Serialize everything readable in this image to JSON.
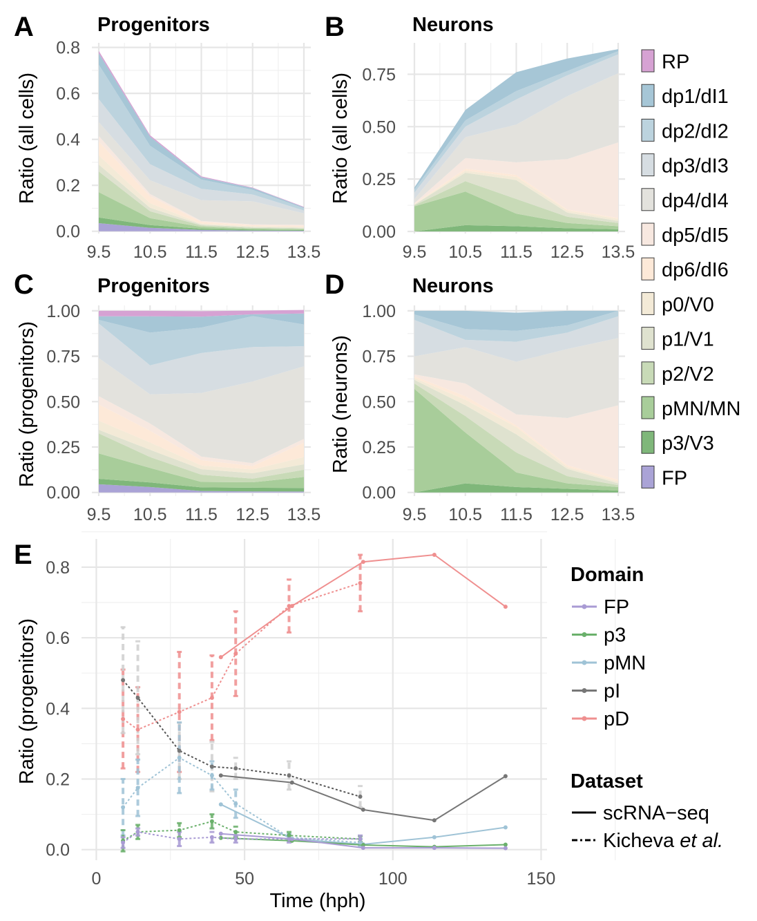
{
  "colors": {
    "RP": "#d6a2d3",
    "dp1/dI1": "#a6c6d6",
    "dp2/dI2": "#bcd3de",
    "dp3/dI3": "#d6dde2",
    "dp4/dI4": "#e3e2dd",
    "dp5/dI5": "#f7e8e0",
    "dp6/dI6": "#fde9d8",
    "p0/V0": "#f3ead7",
    "p1/V1": "#dfe2cf",
    "p2/V2": "#c8dab7",
    "pMN/MN": "#a8cd9a",
    "p3/V3": "#7fb77a",
    "FP": "#aaa3d6",
    "line_FP": "#a99bd4",
    "line_p3": "#6ab06b",
    "line_pMN": "#9fc3d6",
    "line_pI": "#767676",
    "line_pD": "#ef8f8f",
    "error_pI": "#cfcfcf"
  },
  "legend": {
    "domains": [
      "RP",
      "dp1/dI1",
      "dp2/dI2",
      "dp3/dI3",
      "dp4/dI4",
      "dp5/dI5",
      "dp6/dI6",
      "p0/V0",
      "p1/V1",
      "p2/V2",
      "pMN/MN",
      "p3/V3",
      "FP"
    ],
    "e_title": "Domain",
    "e_items": [
      "FP",
      "p3",
      "pMN",
      "pI",
      "pD"
    ],
    "dataset_title": "Dataset",
    "dataset_items": [
      {
        "label": "scRNA−seq",
        "style": "solid"
      },
      {
        "label_prefix": "Kicheva ",
        "label_italic": "et al.",
        "style": "dashed"
      }
    ]
  },
  "chart_data": [
    {
      "id": "A",
      "type": "area",
      "title": "Progenitors",
      "xlabel": "",
      "ylabel": "Ratio (all cells)",
      "x": [
        9.5,
        10.5,
        11.5,
        12.5,
        13.5
      ],
      "xticks": [
        "9.5",
        "10.5",
        "11.5",
        "12.5",
        "13.5"
      ],
      "ylim": [
        -0.01,
        0.82
      ],
      "yticks": [
        0.0,
        0.2,
        0.4,
        0.6,
        0.8
      ],
      "ytick_labels": [
        "0.0",
        "0.2",
        "0.4",
        "0.6",
        "0.8"
      ],
      "stacked": true,
      "series": [
        {
          "domain": "FP",
          "values": [
            0.035,
            0.015,
            0.006,
            0.003,
            0.002
          ]
        },
        {
          "domain": "p3/V3",
          "values": [
            0.025,
            0.012,
            0.005,
            0.004,
            0.003
          ]
        },
        {
          "domain": "pMN/MN",
          "values": [
            0.11,
            0.03,
            0.008,
            0.004,
            0.004
          ]
        },
        {
          "domain": "p2/V2",
          "values": [
            0.09,
            0.03,
            0.006,
            0.004,
            0.003
          ]
        },
        {
          "domain": "p1/V1",
          "values": [
            0.03,
            0.015,
            0.004,
            0.003,
            0.003
          ]
        },
        {
          "domain": "p0/V0",
          "values": [
            0.04,
            0.02,
            0.004,
            0.004,
            0.004
          ]
        },
        {
          "domain": "dp6/dI6",
          "values": [
            0.06,
            0.03,
            0.008,
            0.004,
            0.005
          ]
        },
        {
          "domain": "dp5/dI5",
          "values": [
            0.025,
            0.01,
            0.004,
            0.004,
            0.004
          ]
        },
        {
          "domain": "dp4/dI4",
          "values": [
            0.06,
            0.06,
            0.09,
            0.1,
            0.05
          ]
        },
        {
          "domain": "dp3/dI3",
          "values": [
            0.1,
            0.07,
            0.05,
            0.03,
            0.012
          ]
        },
        {
          "domain": "dp2/dI2",
          "values": [
            0.15,
            0.08,
            0.04,
            0.02,
            0.01
          ]
        },
        {
          "domain": "dp1/dI1",
          "values": [
            0.05,
            0.04,
            0.01,
            0.008,
            0.004
          ]
        },
        {
          "domain": "RP",
          "values": [
            0.01,
            0.006,
            0.004,
            0.002,
            0.002
          ]
        }
      ]
    },
    {
      "id": "B",
      "type": "area",
      "title": "Neurons",
      "xlabel": "",
      "ylabel": "Ratio (all cells)",
      "x": [
        9.5,
        10.5,
        11.5,
        12.5,
        13.5
      ],
      "xticks": [
        "9.5",
        "10.5",
        "11.5",
        "12.5",
        "13.5"
      ],
      "ylim": [
        -0.01,
        0.9
      ],
      "yticks": [
        0.0,
        0.25,
        0.5,
        0.75
      ],
      "ytick_labels": [
        "0.00",
        "0.25",
        "0.50",
        "0.75"
      ],
      "stacked": true,
      "series": [
        {
          "domain": "FP",
          "values": [
            0,
            0,
            0,
            0,
            0
          ]
        },
        {
          "domain": "p3/V3",
          "values": [
            0.0,
            0.03,
            0.025,
            0.015,
            0.01
          ]
        },
        {
          "domain": "pMN/MN",
          "values": [
            0.12,
            0.16,
            0.06,
            0.025,
            0.015
          ]
        },
        {
          "domain": "p2/V2",
          "values": [
            0.005,
            0.05,
            0.07,
            0.03,
            0.015
          ]
        },
        {
          "domain": "p1/V1",
          "values": [
            0.003,
            0.04,
            0.09,
            0.02,
            0.01
          ]
        },
        {
          "domain": "p0/V0",
          "values": [
            0.002,
            0.01,
            0.015,
            0.01,
            0.01
          ]
        },
        {
          "domain": "dp6/dI6",
          "values": [
            0.002,
            0.01,
            0.01,
            0.005,
            0.005
          ]
        },
        {
          "domain": "dp5/dI5",
          "values": [
            0.003,
            0.05,
            0.06,
            0.24,
            0.36
          ]
        },
        {
          "domain": "dp4/dI4",
          "values": [
            0.02,
            0.1,
            0.18,
            0.3,
            0.33
          ]
        },
        {
          "domain": "dp3/dI3",
          "values": [
            0.03,
            0.05,
            0.12,
            0.1,
            0.09
          ]
        },
        {
          "domain": "dp2/dI2",
          "values": [
            0.015,
            0.03,
            0.04,
            0.02,
            0.015
          ]
        },
        {
          "domain": "dp1/dI1",
          "values": [
            0.01,
            0.05,
            0.09,
            0.06,
            0.01
          ]
        },
        {
          "domain": "RP",
          "values": [
            0,
            0,
            0,
            0,
            0
          ]
        }
      ]
    },
    {
      "id": "C",
      "type": "area",
      "title": "Progenitors",
      "xlabel": "",
      "ylabel": "Ratio (progenitors)",
      "x": [
        9.5,
        10.5,
        11.5,
        12.5,
        13.5
      ],
      "xticks": [
        "9.5",
        "10.5",
        "11.5",
        "12.5",
        "13.5"
      ],
      "ylim": [
        -0.02,
        1.03
      ],
      "yticks": [
        0.0,
        0.25,
        0.5,
        0.75,
        1.0
      ],
      "ytick_labels": [
        "0.00",
        "0.25",
        "0.50",
        "0.75",
        "1.00"
      ],
      "stacked": true,
      "series": [
        {
          "domain": "FP",
          "values": [
            0.045,
            0.03,
            0.008,
            0.006,
            0.005
          ]
        },
        {
          "domain": "p3/V3",
          "values": [
            0.03,
            0.025,
            0.02,
            0.02,
            0.02
          ]
        },
        {
          "domain": "pMN/MN",
          "values": [
            0.14,
            0.08,
            0.03,
            0.03,
            0.06
          ]
        },
        {
          "domain": "p2/V2",
          "values": [
            0.11,
            0.06,
            0.04,
            0.02,
            0.04
          ]
        },
        {
          "domain": "p1/V1",
          "values": [
            0.02,
            0.04,
            0.03,
            0.03,
            0.03
          ]
        },
        {
          "domain": "p0/V0",
          "values": [
            0.05,
            0.04,
            0.02,
            0.02,
            0.04
          ]
        },
        {
          "domain": "dp6/dI6",
          "values": [
            0.09,
            0.065,
            0.03,
            0.02,
            0.08
          ]
        },
        {
          "domain": "dp5/dI5",
          "values": [
            0.045,
            0.04,
            0.02,
            0.015,
            0.02
          ]
        },
        {
          "domain": "dp4/dI4",
          "values": [
            0.21,
            0.16,
            0.35,
            0.45,
            0.4
          ]
        },
        {
          "domain": "dp3/dI3",
          "values": [
            0.19,
            0.16,
            0.22,
            0.19,
            0.11
          ]
        },
        {
          "domain": "dp2/dI2",
          "values": [
            0.02,
            0.18,
            0.14,
            0.17,
            0.12
          ]
        },
        {
          "domain": "dp1/dI1",
          "values": [
            0.02,
            0.09,
            0.06,
            0.01,
            0.06
          ]
        },
        {
          "domain": "RP",
          "values": [
            0.03,
            0.03,
            0.03,
            0.02,
            0.02
          ]
        }
      ]
    },
    {
      "id": "D",
      "type": "area",
      "title": "Neurons",
      "xlabel": "",
      "ylabel": "Ratio (neurons)",
      "x": [
        9.5,
        10.5,
        11.5,
        12.5,
        13.5
      ],
      "xticks": [
        "9.5",
        "10.5",
        "11.5",
        "12.5",
        "13.5"
      ],
      "ylim": [
        -0.02,
        1.03
      ],
      "yticks": [
        0.0,
        0.25,
        0.5,
        0.75,
        1.0
      ],
      "ytick_labels": [
        "0.00",
        "0.25",
        "0.50",
        "0.75",
        "1.00"
      ],
      "stacked": true,
      "series": [
        {
          "domain": "FP",
          "values": [
            0,
            0,
            0,
            0,
            0
          ]
        },
        {
          "domain": "p3/V3",
          "values": [
            0.0,
            0.05,
            0.03,
            0.02,
            0.01
          ]
        },
        {
          "domain": "pMN/MN",
          "values": [
            0.57,
            0.28,
            0.08,
            0.03,
            0.02
          ]
        },
        {
          "domain": "p2/V2",
          "values": [
            0.03,
            0.09,
            0.11,
            0.04,
            0.01
          ]
        },
        {
          "domain": "p1/V1",
          "values": [
            0.02,
            0.06,
            0.1,
            0.04,
            0.01
          ]
        },
        {
          "domain": "p0/V0",
          "values": [
            0.01,
            0.03,
            0.04,
            0.01,
            0.01
          ]
        },
        {
          "domain": "dp6/dI6",
          "values": [
            0.01,
            0.02,
            0.01,
            0.01,
            0.01
          ]
        },
        {
          "domain": "dp5/dI5",
          "values": [
            0.01,
            0.07,
            0.06,
            0.26,
            0.41
          ]
        },
        {
          "domain": "dp4/dI4",
          "values": [
            0.1,
            0.2,
            0.29,
            0.38,
            0.37
          ]
        },
        {
          "domain": "dp3/dI3",
          "values": [
            0.2,
            0.04,
            0.11,
            0.09,
            0.12
          ]
        },
        {
          "domain": "dp2/dI2",
          "values": [
            0.03,
            0.06,
            0.06,
            0.04,
            0.03
          ]
        },
        {
          "domain": "dp1/dI1",
          "values": [
            0.02,
            0.1,
            0.1,
            0.08,
            0.0
          ]
        },
        {
          "domain": "RP",
          "values": [
            0,
            0,
            0,
            0,
            0
          ]
        }
      ]
    },
    {
      "id": "E",
      "type": "line",
      "title": "",
      "xlabel": "Time (hph)",
      "ylabel": "Ratio (progenitors)",
      "xlim": [
        -5,
        152
      ],
      "ylim": [
        -0.03,
        0.88
      ],
      "xticks": [
        0,
        50,
        100,
        150
      ],
      "xtick_labels": [
        "0",
        "50",
        "100",
        "150"
      ],
      "yticks": [
        0.0,
        0.2,
        0.4,
        0.6,
        0.8
      ],
      "ytick_labels": [
        "0.0",
        "0.2",
        "0.4",
        "0.6",
        "0.8"
      ],
      "series": [
        {
          "name": "pD",
          "dataset": "scRNA−seq",
          "x": [
            42,
            66,
            90,
            114,
            138
          ],
          "y": [
            0.545,
            0.69,
            0.815,
            0.835,
            0.688
          ]
        },
        {
          "name": "pI",
          "dataset": "scRNA−seq",
          "x": [
            42,
            66,
            90,
            114,
            138
          ],
          "y": [
            0.21,
            0.19,
            0.113,
            0.083,
            0.208
          ]
        },
        {
          "name": "pMN",
          "dataset": "scRNA−seq",
          "x": [
            42,
            66,
            90,
            114,
            138
          ],
          "y": [
            0.128,
            0.03,
            0.015,
            0.035,
            0.063
          ]
        },
        {
          "name": "p3",
          "dataset": "scRNA−seq",
          "x": [
            42,
            66,
            90,
            114,
            138
          ],
          "y": [
            0.033,
            0.025,
            0.013,
            0.008,
            0.014
          ]
        },
        {
          "name": "FP",
          "dataset": "scRNA−seq",
          "x": [
            42,
            66,
            90,
            114,
            138
          ],
          "y": [
            0.045,
            0.03,
            0.005,
            0.005,
            0.004
          ]
        },
        {
          "name": "pD",
          "dataset": "Kicheva et al.",
          "x": [
            9,
            14,
            28,
            39,
            47,
            65,
            89
          ],
          "y": [
            0.37,
            0.34,
            0.39,
            0.43,
            0.555,
            0.69,
            0.755
          ],
          "err": [
            0.14,
            0.12,
            0.17,
            0.12,
            0.12,
            0.075,
            0.08
          ]
        },
        {
          "name": "pI",
          "dataset": "Kicheva et al.",
          "x": [
            9,
            14,
            28,
            39,
            47,
            65,
            89
          ],
          "y": [
            0.48,
            0.43,
            0.28,
            0.235,
            0.23,
            0.21,
            0.15
          ],
          "err": [
            0.15,
            0.16,
            0.08,
            0.07,
            0.03,
            0.04,
            0.03
          ]
        },
        {
          "name": "pMN",
          "dataset": "Kicheva et al.",
          "x": [
            9,
            14,
            28,
            39,
            47,
            65,
            89
          ],
          "y": [
            0.12,
            0.175,
            0.26,
            0.21,
            0.13,
            0.035,
            0.02
          ],
          "err": [
            0.08,
            0.08,
            0.1,
            0.04,
            0.04,
            0.01,
            0.01
          ]
        },
        {
          "name": "p3",
          "dataset": "Kicheva et al.",
          "x": [
            9,
            14,
            28,
            39,
            47,
            65,
            89
          ],
          "y": [
            0.025,
            0.05,
            0.055,
            0.08,
            0.05,
            0.04,
            0.03
          ],
          "err": [
            0.03,
            0.02,
            0.02,
            0.02,
            0.015,
            0.01,
            0.008
          ]
        },
        {
          "name": "FP",
          "dataset": "Kicheva et al.",
          "x": [
            9,
            14,
            28,
            39,
            47,
            65,
            89
          ],
          "y": [
            0.02,
            0.05,
            0.03,
            0.035,
            0.03,
            0.03,
            0.03
          ],
          "err": [
            0.015,
            0.01,
            0.02,
            0.015,
            0.01,
            0.01,
            0.01
          ]
        }
      ]
    }
  ],
  "panels": {
    "A": {
      "letter": "A",
      "title": "Progenitors",
      "ylabel": "Ratio (all cells)"
    },
    "B": {
      "letter": "B",
      "title": "Neurons",
      "ylabel": "Ratio (all cells)"
    },
    "C": {
      "letter": "C",
      "title": "Progenitors",
      "ylabel": "Ratio (progenitors)"
    },
    "D": {
      "letter": "D",
      "title": "Neurons",
      "ylabel": "Ratio (neurons)"
    },
    "E": {
      "letter": "E",
      "xlabel": "Time (hph)",
      "ylabel": "Ratio (progenitors)"
    }
  }
}
